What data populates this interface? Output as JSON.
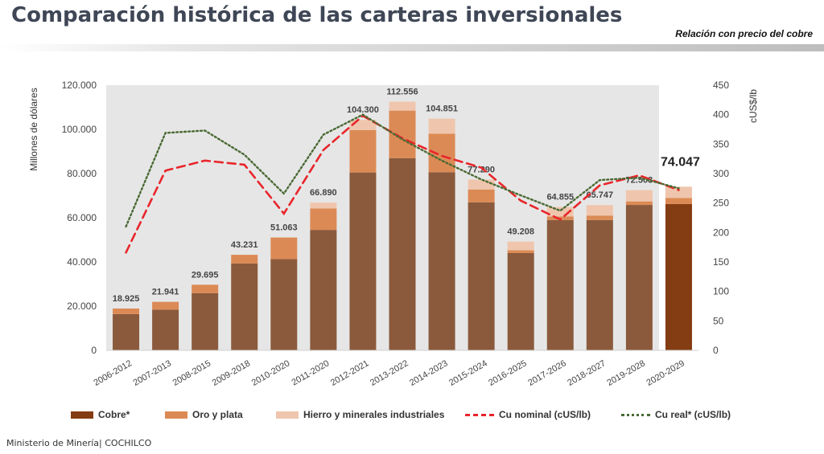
{
  "header": {
    "title": "Comparación histórica de las carteras inversionales",
    "subtitle": "Relación con precio del cobre"
  },
  "footer": {
    "source": "Ministerio de Minería| COCHILCO"
  },
  "colors": {
    "cobre": "#8b5a3c",
    "cobre_last": "#843c12",
    "oro": "#dc8a55",
    "hierro": "#efc6ad",
    "nominal": "#e8262b",
    "real": "#4a6a34",
    "plot_bg": "#e6e6e6"
  },
  "chart_data": {
    "type": "bar",
    "categories": [
      "2006-2012",
      "2007-2013",
      "2008-2015",
      "2009-2018",
      "2010-2020",
      "2011-2020",
      "2012-2021",
      "2013-2022",
      "2014-2023",
      "2015-2024",
      "2016-2025",
      "2017-2026",
      "2018-2027",
      "2019-2028",
      "2020-2029"
    ],
    "series": [
      {
        "name": "Cobre*",
        "values": [
          16400,
          18400,
          25900,
          39300,
          41300,
          54500,
          80500,
          87000,
          80600,
          67000,
          44000,
          59000,
          59000,
          65800,
          66200
        ]
      },
      {
        "name": "Oro y plata",
        "values": [
          2525,
          3541,
          3795,
          3931,
          9763,
          9700,
          19200,
          21500,
          17400,
          5800,
          1300,
          1600,
          2000,
          1600,
          2800
        ]
      },
      {
        "name": "Hierro y minerales industriales",
        "values": [
          0,
          0,
          0,
          0,
          0,
          2690,
          4600,
          4056,
          6851,
          4490,
          3908,
          4255,
          4747,
          5103,
          5047
        ]
      }
    ],
    "totals": [
      "18.925",
      "21.941",
      "29.695",
      "43.231",
      "51.063",
      "66.890",
      "104.300",
      "112.556",
      "104.851",
      "77.290",
      "49.208",
      "64.855",
      "65.747",
      "72.503",
      "74.047"
    ],
    "lines": [
      {
        "name": "Cu nominal (cUS/lb)",
        "axis": "right",
        "values": [
          166,
          305,
          322,
          315,
          232,
          340,
          398,
          360,
          330,
          310,
          254,
          222,
          280,
          297,
          272
        ]
      },
      {
        "name": "Cu real* (cUS/lb)",
        "axis": "right",
        "values": [
          210,
          369,
          373,
          332,
          266,
          366,
          400,
          358,
          322,
          290,
          263,
          237,
          289,
          293,
          275
        ]
      }
    ],
    "y_left": {
      "label": "Millones de dólares",
      "min": 0,
      "max": 120000,
      "ticks": [
        "0",
        "20.000",
        "40.000",
        "60.000",
        "80.000",
        "100.000",
        "120.000"
      ]
    },
    "y_right": {
      "label": "cUS$/lb",
      "min": 0,
      "max": 450,
      "ticks": [
        "0",
        "50",
        "100",
        "150",
        "200",
        "250",
        "300",
        "350",
        "400",
        "450"
      ]
    },
    "grid": false,
    "legend_position": "bottom",
    "shaded_range": "2006-2012 to 2019-2028"
  }
}
